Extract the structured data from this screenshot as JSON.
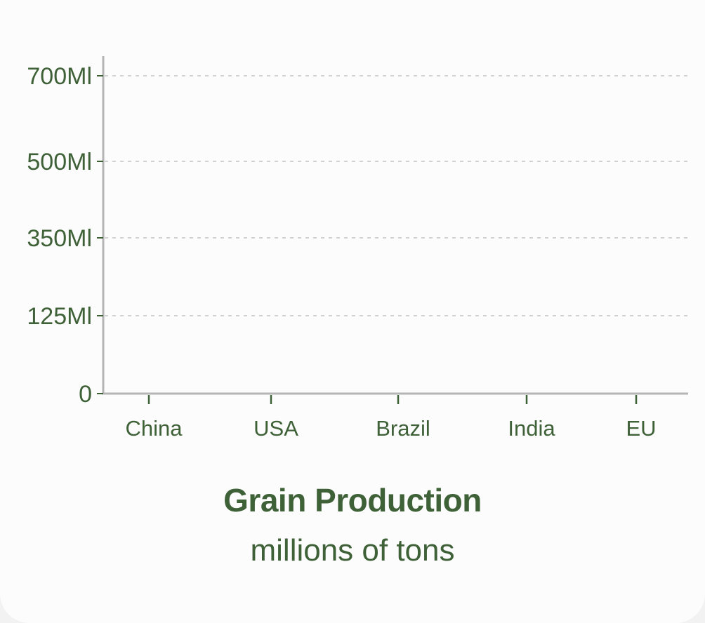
{
  "chart_data": {
    "type": "bar",
    "categories": [
      "China",
      "USA",
      "Brazil",
      "India",
      "EU"
    ],
    "series": [
      {
        "values": [
          null,
          null,
          null,
          null,
          null
        ]
      }
    ],
    "yticks": [
      {
        "value": 0,
        "label": "0"
      },
      {
        "value": 125,
        "label": "125Ml"
      },
      {
        "value": 350,
        "label": "350Ml"
      },
      {
        "value": 500,
        "label": "500Ml"
      },
      {
        "value": 700,
        "label": "700Ml"
      }
    ],
    "ylim": [
      0,
      700
    ],
    "grid": true,
    "title": "Grain Production",
    "subtitle": "millions of tons",
    "xlabel": "",
    "ylabel": ""
  },
  "colors": {
    "text": "#3f6137",
    "axis": "#b5b5b5",
    "grid": "#d2d2d2",
    "background": "#fcfcfd"
  }
}
